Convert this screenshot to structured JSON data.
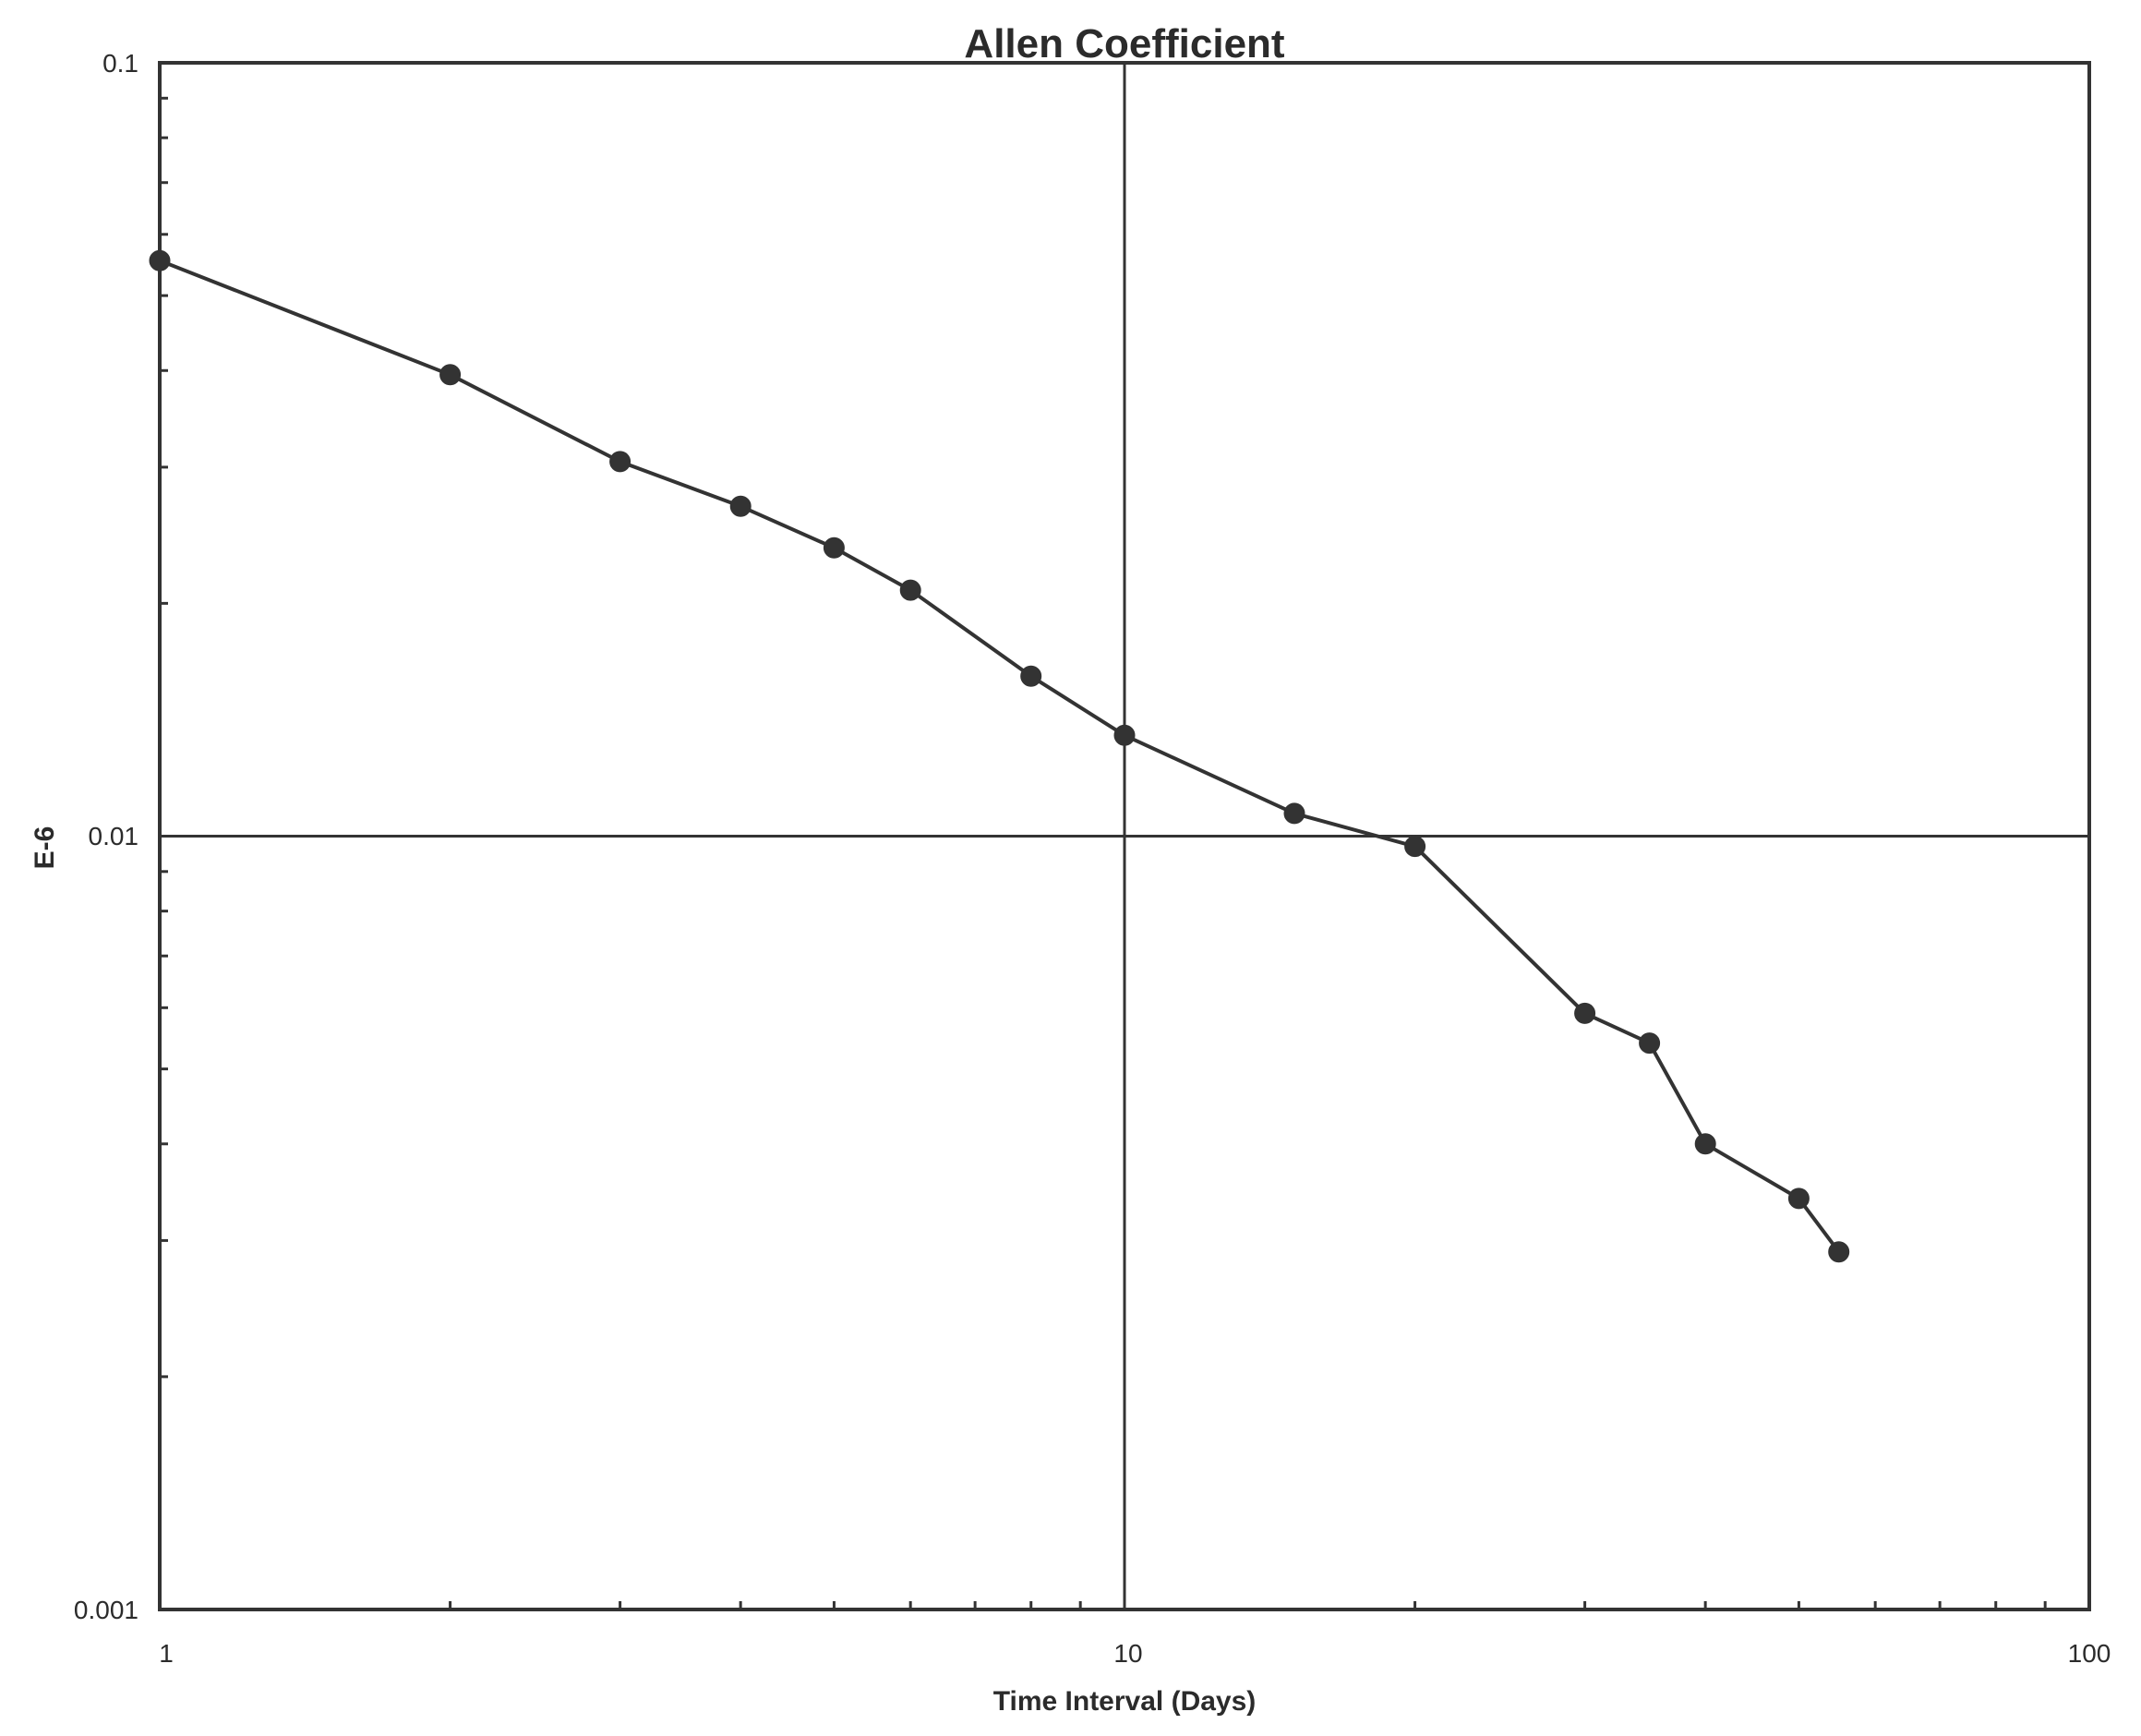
{
  "chart_data": {
    "type": "line",
    "title": "Allen Coefficient",
    "xlabel": "Time Interval (Days)",
    "ylabel": "E-6",
    "x_scale": "log",
    "y_scale": "log",
    "xlim": [
      1,
      100
    ],
    "ylim": [
      0.001,
      0.1
    ],
    "x_tick_labels": [
      "1",
      "10",
      "100"
    ],
    "y_tick_labels": [
      "0.1",
      "0.01",
      "0.001"
    ],
    "grid": "major",
    "legend": "none",
    "colors": {
      "line": "#333333",
      "marker": "#333333",
      "axes": "#333333",
      "grid": "#333333"
    },
    "series": [
      {
        "x": [
          1,
          2,
          3,
          4,
          5,
          6,
          8,
          10,
          15,
          20,
          30,
          35,
          40,
          50,
          55
        ],
        "y": [
          0.0555,
          0.0395,
          0.0305,
          0.0267,
          0.0236,
          0.0208,
          0.0161,
          0.0135,
          0.0107,
          0.0097,
          0.0059,
          0.0054,
          0.004,
          0.0034,
          0.0029
        ]
      }
    ]
  }
}
